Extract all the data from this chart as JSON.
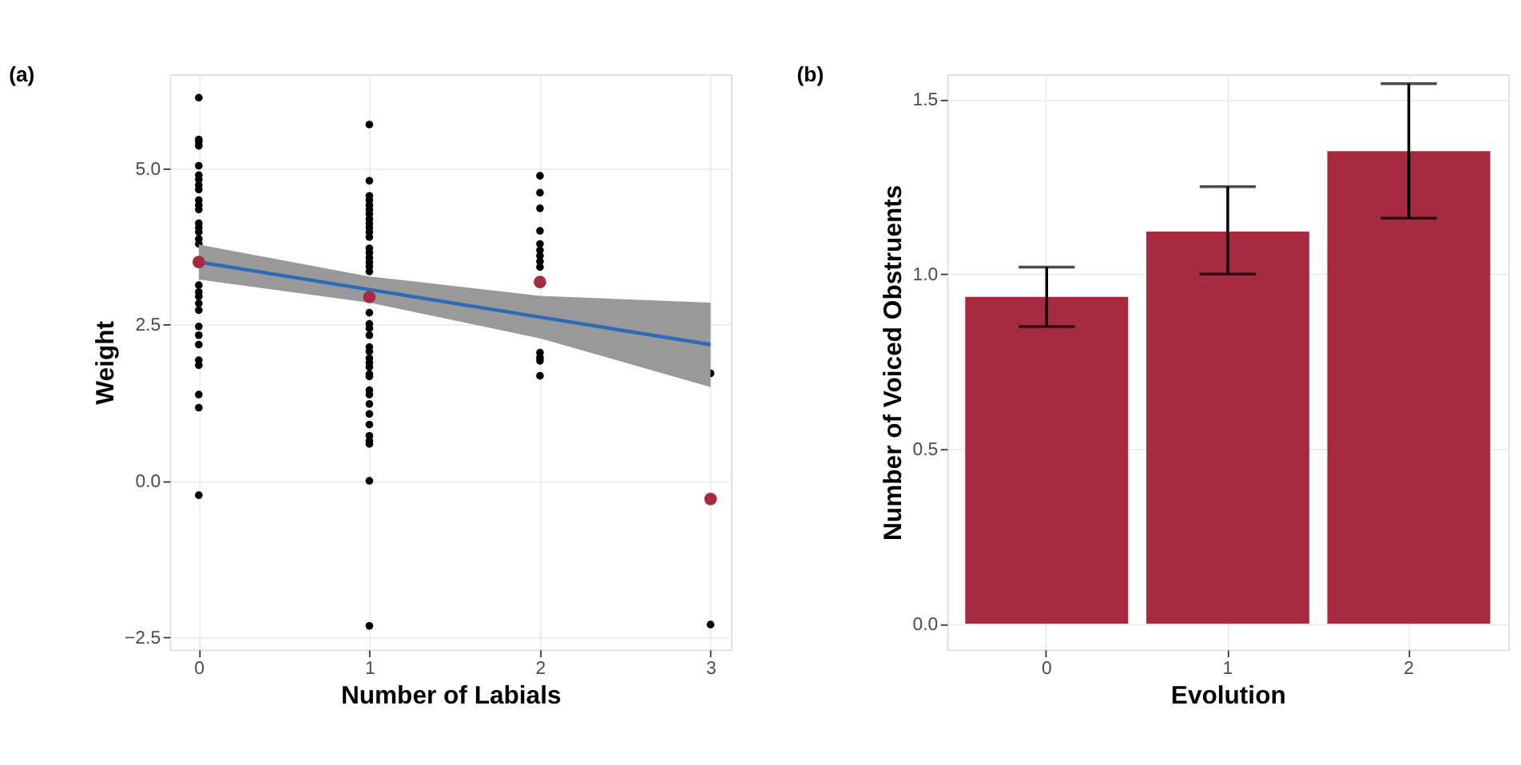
{
  "chart_data": [
    {
      "type": "scatter",
      "title": "(a)",
      "xlabel": "Number of Labials",
      "ylabel": "Weight",
      "xlim": [
        -0.17,
        3.12
      ],
      "xticks": [
        0,
        1,
        2,
        3
      ],
      "ylim": [
        -2.7,
        6.5
      ],
      "yticks": [
        {
          "value": -2.5,
          "label": "−2.5"
        },
        {
          "value": 0,
          "label": "0.0"
        },
        {
          "value": 2.5,
          "label": "2.5"
        },
        {
          "value": 5,
          "label": "5.0"
        }
      ],
      "grid": true,
      "marker": "circle",
      "series": [
        {
          "type": "scatter",
          "color": "#000000",
          "x": [
            0,
            0,
            0,
            0,
            0,
            0,
            0,
            0,
            0,
            0,
            0,
            0,
            0,
            0,
            0,
            0,
            0,
            0,
            0,
            0,
            0,
            0,
            0,
            0,
            0,
            0,
            0,
            0,
            0,
            0,
            1,
            1,
            1,
            1,
            1,
            1,
            1,
            1,
            1,
            1,
            1,
            1,
            1,
            1,
            1,
            1,
            1,
            1,
            1,
            1,
            1,
            1,
            1,
            1,
            1,
            1,
            1,
            1,
            1,
            1,
            1,
            1,
            1,
            1,
            1,
            1,
            1,
            1,
            1,
            2,
            2,
            2,
            2,
            2,
            2,
            2,
            2,
            2,
            2,
            2,
            2,
            2,
            3,
            3
          ],
          "values": [
            6.13,
            5.46,
            5.42,
            5.36,
            5.04,
            4.89,
            4.82,
            4.73,
            4.66,
            4.49,
            4.41,
            4.34,
            4.12,
            4.05,
            3.98,
            3.87,
            3.79,
            3.13,
            3.02,
            2.95,
            2.84,
            2.73,
            2.47,
            2.33,
            2.18,
            1.93,
            1.85,
            1.38,
            1.17,
            -0.23,
            5.7,
            4.8,
            4.56,
            4.49,
            4.41,
            4.34,
            4.27,
            4.19,
            4.12,
            4.05,
            3.98,
            3.9,
            3.72,
            3.65,
            3.57,
            3.5,
            3.43,
            3.35,
            2.69,
            2.51,
            2.44,
            2.33,
            2.14,
            2.07,
            1.96,
            1.89,
            1.82,
            1.71,
            1.67,
            1.45,
            1.38,
            1.23,
            1.07,
            0.9,
            0.72,
            0.64,
            0.59,
            0.0,
            -2.32,
            4.88,
            4.61,
            4.36,
            4.0,
            3.79,
            3.69,
            3.6,
            3.51,
            3.42,
            2.05,
            1.97,
            1.92,
            1.68,
            1.72,
            -2.3
          ]
        },
        {
          "type": "line",
          "marker": "none",
          "color": "#2c6bb5",
          "x": [
            0,
            1,
            2,
            3
          ],
          "values": [
            3.5,
            3.06,
            2.62,
            2.18
          ],
          "lower": [
            3.22,
            2.85,
            2.28,
            1.5
          ],
          "upper": [
            3.78,
            3.27,
            2.96,
            2.85
          ]
        },
        {
          "type": "scatter",
          "color": "#a62b40",
          "x": [
            0,
            1,
            2,
            3
          ],
          "values": [
            3.5,
            2.94,
            3.18,
            -0.29
          ]
        }
      ]
    },
    {
      "type": "bar",
      "title": "(b)",
      "xlabel": "Evolution",
      "ylabel": "Number of Voiced Obstruents",
      "categories": [
        "0",
        "1",
        "2"
      ],
      "values": [
        0.935,
        1.122,
        1.352
      ],
      "color": "#a62b40",
      "errors": [
        [
          0.85,
          1.02
        ],
        [
          1.0,
          1.25
        ],
        [
          1.16,
          1.545
        ]
      ],
      "ylim": [
        -0.074,
        1.571
      ],
      "yticks": [
        {
          "value": 0,
          "label": "0.0"
        },
        {
          "value": 0.5,
          "label": "0.5"
        },
        {
          "value": 1,
          "label": "1.0"
        },
        {
          "value": 1.5,
          "label": "1.5"
        }
      ],
      "grid": true
    }
  ]
}
